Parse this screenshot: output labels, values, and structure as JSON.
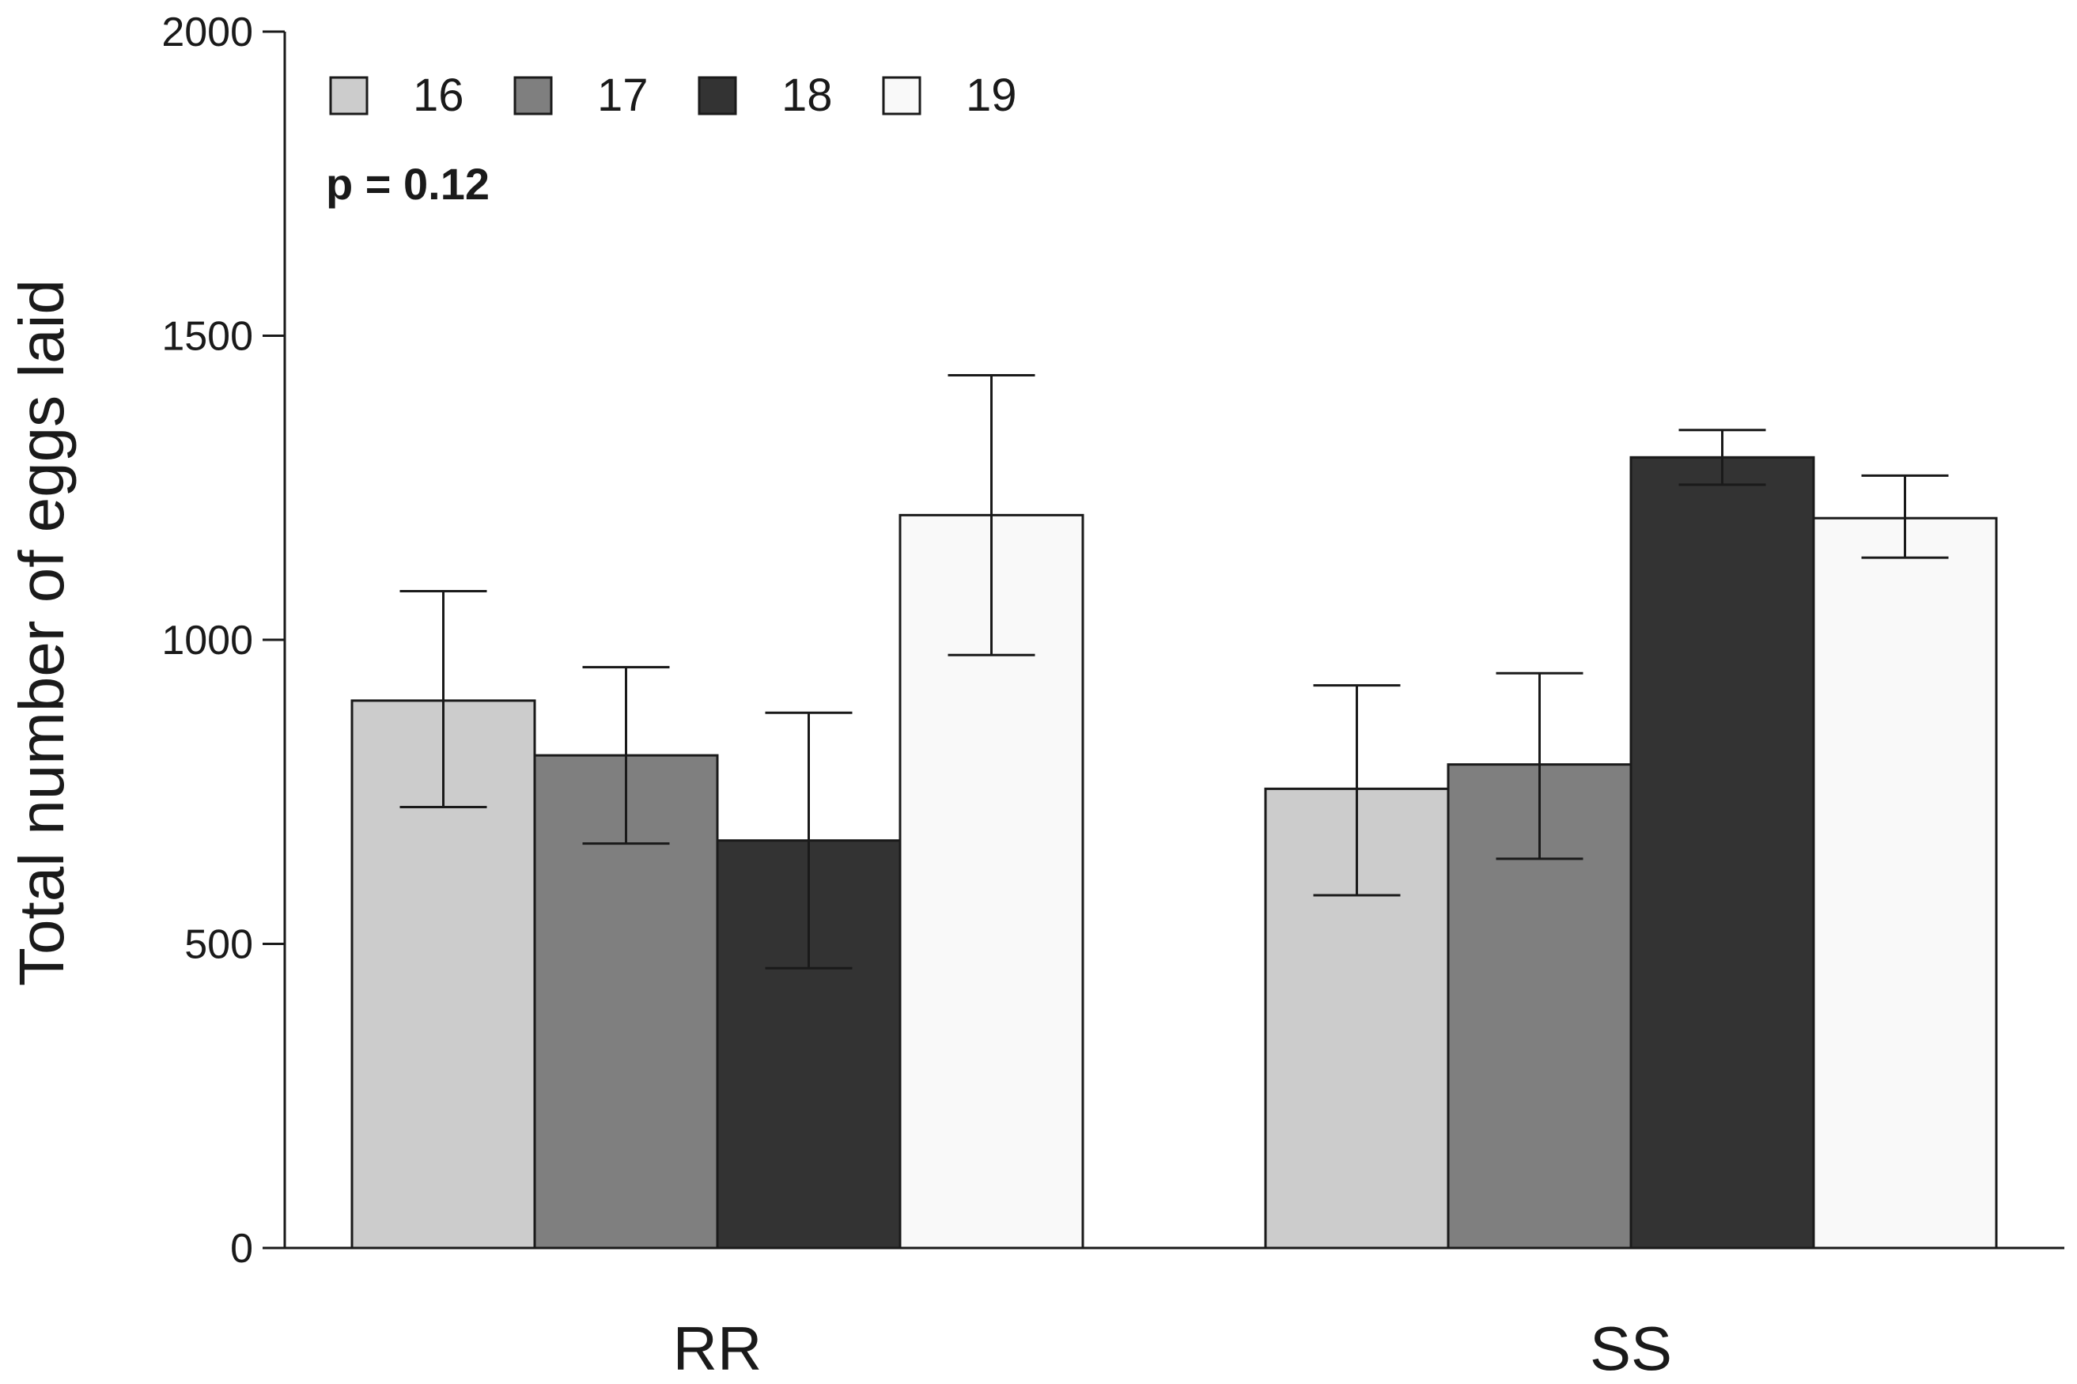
{
  "chart_data": {
    "type": "bar",
    "title": "",
    "xlabel": "",
    "ylabel": "Total number of eggs laid",
    "ylim": [
      0,
      2000
    ],
    "yticks": [
      0,
      500,
      1000,
      1500,
      2000
    ],
    "categories": [
      "RR",
      "SS"
    ],
    "series": [
      {
        "name": "16",
        "color": "#cccccc",
        "values": [
          900,
          755
        ],
        "err_low": [
          725,
          580
        ],
        "err_high": [
          1080,
          925
        ]
      },
      {
        "name": "17",
        "color": "#7f7f7f",
        "values": [
          810,
          795
        ],
        "err_low": [
          665,
          640
        ],
        "err_high": [
          955,
          945
        ]
      },
      {
        "name": "18",
        "color": "#333333",
        "values": [
          670,
          1300
        ],
        "err_low": [
          460,
          1255
        ],
        "err_high": [
          880,
          1345
        ]
      },
      {
        "name": "19",
        "color": "#f9f9f9",
        "values": [
          1205,
          1200
        ],
        "err_low": [
          975,
          1135
        ],
        "err_high": [
          1435,
          1270
        ]
      }
    ],
    "legend_position": "top-left",
    "annotation": "p = 0.12"
  }
}
